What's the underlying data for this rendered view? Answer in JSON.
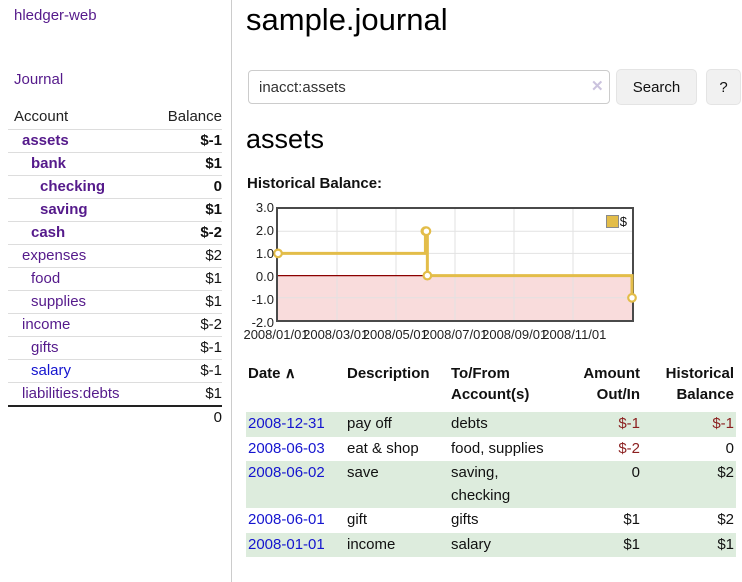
{
  "app": {
    "brand": "hledger-web",
    "nav_journal": "Journal"
  },
  "sidebar": {
    "headers": {
      "account": "Account",
      "balance": "Balance"
    },
    "accounts": [
      {
        "name": "assets",
        "balance": "$-1",
        "level": 1,
        "bold": true,
        "neg": "strong"
      },
      {
        "name": "bank",
        "balance": "$1",
        "level": 2,
        "bold": true
      },
      {
        "name": "checking",
        "balance": "0",
        "level": 3,
        "bold": true
      },
      {
        "name": "saving",
        "balance": "$1",
        "level": 3,
        "bold": true
      },
      {
        "name": "cash",
        "balance": "$-2",
        "level": 2,
        "bold": true,
        "neg": "strong"
      },
      {
        "name": "expenses",
        "balance": "$2",
        "level": 1
      },
      {
        "name": "food",
        "balance": "$1",
        "level": 2
      },
      {
        "name": "supplies",
        "balance": "$1",
        "level": 2
      },
      {
        "name": "income",
        "balance": "$-2",
        "level": 1,
        "neg": "soft"
      },
      {
        "name": "gifts",
        "balance": "$-1",
        "level": 2,
        "neg": "soft"
      },
      {
        "name": "salary",
        "balance": "$-1",
        "level": 2,
        "neg": "soft",
        "blue": true
      },
      {
        "name": "liabilities:debts",
        "balance": "$1",
        "level": 1
      }
    ],
    "total": "0"
  },
  "header": {
    "title": "sample.journal"
  },
  "search": {
    "value": "inacct:assets",
    "clear_icon": "✕",
    "button": "Search",
    "help_button": "?"
  },
  "account_page": {
    "heading": "assets",
    "chart_label": "Historical Balance:"
  },
  "chart_data": {
    "type": "line",
    "step": true,
    "title": "Historical Balance:",
    "legend": "$",
    "x_start": "2008-01-01",
    "x_end": "2008-12-31",
    "points": [
      [
        "2008-01-01",
        1
      ],
      [
        "2008-06-01",
        2
      ],
      [
        "2008-06-02",
        2
      ],
      [
        "2008-06-03",
        0
      ],
      [
        "2008-12-31",
        -1
      ]
    ],
    "ylim": [
      -2,
      3
    ],
    "y_ticks": [
      "3.0",
      "2.0",
      "1.0",
      "0.0",
      "-1.0",
      "-2.0"
    ],
    "x_ticks": [
      "2008/01/01",
      "2008/03/01",
      "2008/05/01",
      "2008/07/01",
      "2008/09/01",
      "2008/11/01"
    ],
    "line_color": "#e3bd49",
    "negative_region_color": "#f9dcdc",
    "zero_line_color": "#8b0000",
    "grid_color": "#e2e2e2"
  },
  "register": {
    "headers": {
      "date": "Date",
      "sort_icon": "∧",
      "description": "Description",
      "accounts_line1": "To/From",
      "accounts_line2": "Account(s)",
      "amount_line1": "Amount",
      "amount_line2": "Out/In",
      "balance_line1": "Historical",
      "balance_line2": "Balance"
    },
    "rows": [
      {
        "date": "2008-12-31",
        "description": "pay off",
        "accounts": "debts",
        "amount": "$-1",
        "amount_neg": true,
        "balance": "$-1",
        "balance_neg": true
      },
      {
        "date": "2008-06-03",
        "description": "eat & shop",
        "accounts": "food, supplies",
        "amount": "$-2",
        "amount_neg": true,
        "balance": "0",
        "balance_neg": false
      },
      {
        "date": "2008-06-02",
        "description": "save",
        "accounts": "saving, checking",
        "amount": "0",
        "amount_neg": false,
        "balance": "$2",
        "balance_neg": false
      },
      {
        "date": "2008-06-01",
        "description": "gift",
        "accounts": "gifts",
        "amount": "$1",
        "amount_neg": false,
        "balance": "$2",
        "balance_neg": false
      },
      {
        "date": "2008-01-01",
        "description": "income",
        "accounts": "salary",
        "amount": "$1",
        "amount_neg": false,
        "balance": "$1",
        "balance_neg": false
      }
    ]
  }
}
